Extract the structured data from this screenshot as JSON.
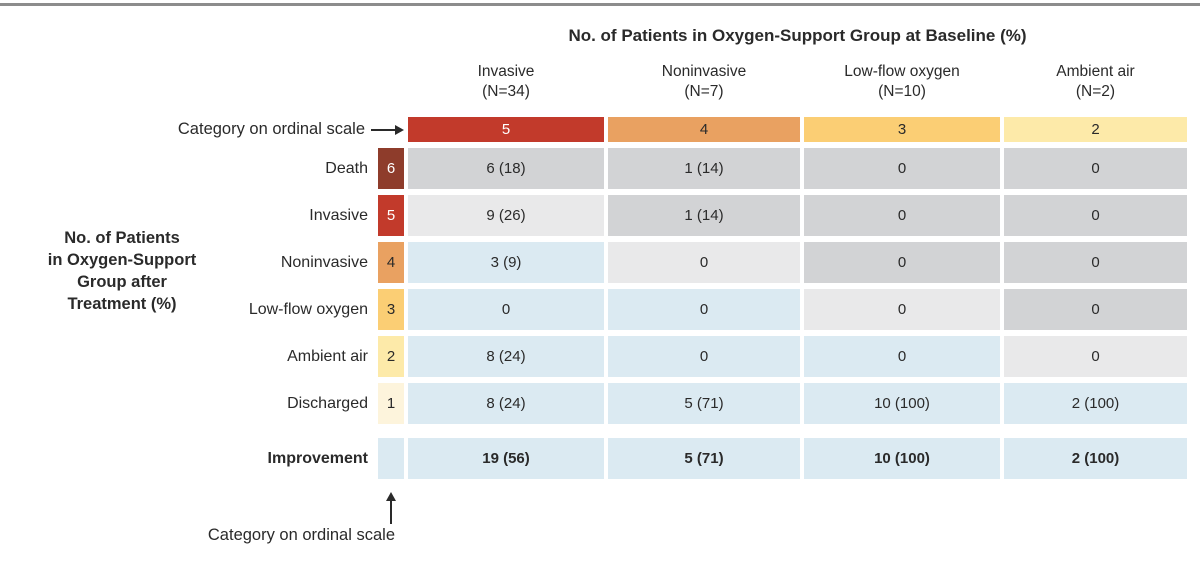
{
  "colors": {
    "rule": "#8c8c8c",
    "ordinal_6": "#8e3c2b",
    "ordinal_5": "#c23a2b",
    "ordinal_4": "#e9a161",
    "ordinal_3": "#fbce74",
    "ordinal_2": "#fdeaa9",
    "ordinal_1": "#fdf4dc",
    "worse": "#d2d3d5",
    "unchanged": "#e9e9ea",
    "improved": "#dbeaf2",
    "text": "#2a2a2a",
    "text_on_dark": "#ffffff"
  },
  "header": {
    "title": "No. of Patients in Oxygen-Support Group at Baseline (%)",
    "columns": [
      {
        "name": "Invasive",
        "n": "(N=34)"
      },
      {
        "name": "Noninvasive",
        "n": "(N=7)"
      },
      {
        "name": "Low-flow oxygen",
        "n": "(N=10)"
      },
      {
        "name": "Ambient air",
        "n": "(N=2)"
      }
    ]
  },
  "baseline_pointer_label": "Category on ordinal scale",
  "band": {
    "ordinals": [
      "5",
      "4",
      "3",
      "2"
    ]
  },
  "left_axis": {
    "lines": [
      "No. of Patients",
      "in Oxygen-Support",
      "Group after",
      "Treatment (%)"
    ]
  },
  "rows": [
    {
      "label": "Death",
      "ordinal": "6",
      "cells": [
        {
          "text": "6 (18)",
          "state": "worse"
        },
        {
          "text": "1 (14)",
          "state": "worse"
        },
        {
          "text": "0",
          "state": "worse"
        },
        {
          "text": "0",
          "state": "worse"
        }
      ]
    },
    {
      "label": "Invasive",
      "ordinal": "5",
      "cells": [
        {
          "text": "9 (26)",
          "state": "unchanged"
        },
        {
          "text": "1 (14)",
          "state": "worse"
        },
        {
          "text": "0",
          "state": "worse"
        },
        {
          "text": "0",
          "state": "worse"
        }
      ]
    },
    {
      "label": "Noninvasive",
      "ordinal": "4",
      "cells": [
        {
          "text": "3 (9)",
          "state": "improved"
        },
        {
          "text": "0",
          "state": "unchanged"
        },
        {
          "text": "0",
          "state": "worse"
        },
        {
          "text": "0",
          "state": "worse"
        }
      ]
    },
    {
      "label": "Low-flow oxygen",
      "ordinal": "3",
      "cells": [
        {
          "text": "0",
          "state": "improved"
        },
        {
          "text": "0",
          "state": "improved"
        },
        {
          "text": "0",
          "state": "unchanged"
        },
        {
          "text": "0",
          "state": "worse"
        }
      ]
    },
    {
      "label": "Ambient air",
      "ordinal": "2",
      "cells": [
        {
          "text": "8 (24)",
          "state": "improved"
        },
        {
          "text": "0",
          "state": "improved"
        },
        {
          "text": "0",
          "state": "improved"
        },
        {
          "text": "0",
          "state": "unchanged"
        }
      ]
    },
    {
      "label": "Discharged",
      "ordinal": "1",
      "cells": [
        {
          "text": "8 (24)",
          "state": "improved"
        },
        {
          "text": "5 (71)",
          "state": "improved"
        },
        {
          "text": "10 (100)",
          "state": "improved"
        },
        {
          "text": "2 (100)",
          "state": "improved"
        }
      ]
    }
  ],
  "improvement": {
    "label": "Improvement",
    "cells": [
      {
        "text": "19 (56)",
        "state": "improved"
      },
      {
        "text": "5 (71)",
        "state": "improved"
      },
      {
        "text": "10 (100)",
        "state": "improved"
      },
      {
        "text": "2 (100)",
        "state": "improved"
      }
    ]
  },
  "bottom_pointer_label": "Category on ordinal scale",
  "chart_data": {
    "type": "heatmap",
    "title": "No. of Patients in Oxygen-Support Group at Baseline (%)",
    "row_axis_label": "No. of Patients in Oxygen-Support Group after Treatment (%)",
    "ordinal_axis_label": "Category on ordinal scale",
    "columns": [
      {
        "label": "Invasive",
        "n": 34,
        "ordinal": 5
      },
      {
        "label": "Noninvasive",
        "n": 7,
        "ordinal": 4
      },
      {
        "label": "Low-flow oxygen",
        "n": 10,
        "ordinal": 3
      },
      {
        "label": "Ambient air",
        "n": 2,
        "ordinal": 2
      }
    ],
    "rows": [
      {
        "label": "Death",
        "ordinal": 6,
        "values": [
          "6 (18)",
          "1 (14)",
          "0",
          "0"
        ]
      },
      {
        "label": "Invasive",
        "ordinal": 5,
        "values": [
          "9 (26)",
          "1 (14)",
          "0",
          "0"
        ]
      },
      {
        "label": "Noninvasive",
        "ordinal": 4,
        "values": [
          "3 (9)",
          "0",
          "0",
          "0"
        ]
      },
      {
        "label": "Low-flow oxygen",
        "ordinal": 3,
        "values": [
          "0",
          "0",
          "0",
          "0"
        ]
      },
      {
        "label": "Ambient air",
        "ordinal": 2,
        "values": [
          "8 (24)",
          "0",
          "0",
          "0"
        ]
      },
      {
        "label": "Discharged",
        "ordinal": 1,
        "values": [
          "8 (24)",
          "5 (71)",
          "10 (100)",
          "2 (100)"
        ]
      }
    ],
    "summary_row": {
      "label": "Improvement",
      "values": [
        "19 (56)",
        "5 (71)",
        "10 (100)",
        "2 (100)"
      ]
    },
    "cell_shading_legend": {
      "worse": "#d2d3d5",
      "unchanged": "#e9e9ea",
      "improved": "#dbeaf2"
    }
  }
}
